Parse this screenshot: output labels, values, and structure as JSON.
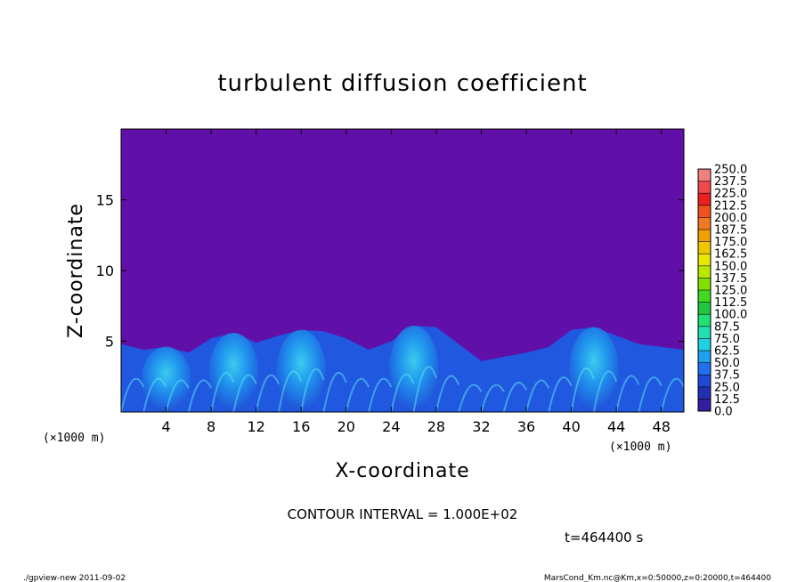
{
  "chart_data": {
    "type": "heatmap",
    "title": "turbulent diffusion coefficient",
    "xlabel": "X-coordinate",
    "ylabel": "Z-coordinate",
    "x_unit_left": "(×1000 m)",
    "x_unit_right": "(×1000 m)",
    "xlim": [
      0,
      50
    ],
    "ylim": [
      0,
      20
    ],
    "x_ticks": [
      4,
      8,
      12,
      16,
      20,
      24,
      28,
      32,
      36,
      40,
      44,
      48
    ],
    "y_ticks": [
      5,
      10,
      15
    ],
    "colorbar": {
      "levels": [
        "250.0",
        "237.5",
        "225.0",
        "212.5",
        "200.0",
        "187.5",
        "175.0",
        "162.5",
        "150.0",
        "137.5",
        "125.0",
        "112.5",
        "100.0",
        "87.5",
        "75.0",
        "62.5",
        "50.0",
        "37.5",
        "25.0",
        "12.5",
        "0.0"
      ],
      "colors": [
        "#f08080",
        "#f04848",
        "#e82020",
        "#f05020",
        "#f07820",
        "#f0a000",
        "#f0c800",
        "#e8e800",
        "#b8e800",
        "#80e000",
        "#40d820",
        "#20c840",
        "#20e070",
        "#20e0b0",
        "#20d0e0",
        "#20a0f0",
        "#2070f0",
        "#2048d8",
        "#2030b0",
        "#3020a0",
        "#6010a8"
      ]
    },
    "background_color": "#6010a8",
    "contour_interval_text": "CONTOUR INTERVAL = 1.000E+02",
    "time_text": "t=464400 s",
    "mixed_layer": {
      "approx_top_km": [
        [
          0,
          4.8
        ],
        [
          2,
          4.4
        ],
        [
          4,
          4.6
        ],
        [
          6,
          4.2
        ],
        [
          8,
          5.2
        ],
        [
          10,
          5.6
        ],
        [
          12,
          4.9
        ],
        [
          14,
          5.4
        ],
        [
          16,
          5.8
        ],
        [
          18,
          5.7
        ],
        [
          20,
          5.2
        ],
        [
          22,
          4.4
        ],
        [
          24,
          5.0
        ],
        [
          26,
          6.1
        ],
        [
          28,
          6.0
        ],
        [
          30,
          4.8
        ],
        [
          32,
          3.6
        ],
        [
          34,
          3.9
        ],
        [
          36,
          4.2
        ],
        [
          38,
          4.6
        ],
        [
          40,
          5.8
        ],
        [
          42,
          6.0
        ],
        [
          44,
          5.4
        ],
        [
          46,
          4.8
        ],
        [
          48,
          4.6
        ],
        [
          50,
          4.4
        ]
      ]
    }
  },
  "footer": {
    "left": "./gpview-new  2011-09-02",
    "right": "MarsCond_Km.nc@Km,x=0:50000,z=0:20000,t=464400"
  }
}
